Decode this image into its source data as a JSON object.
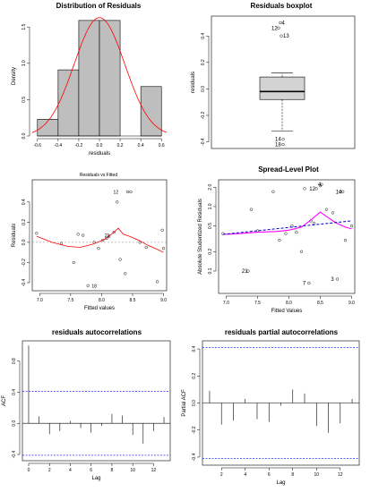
{
  "chart_data": [
    {
      "id": "hist",
      "type": "bar",
      "title": "Distribution of Residuals",
      "xlabel": "residuals",
      "ylabel": "Density",
      "xlim": [
        -0.65,
        0.65
      ],
      "ylim": [
        0,
        1.65
      ],
      "xticks": [
        -0.6,
        -0.4,
        -0.2,
        0.0,
        0.2,
        0.4,
        0.6
      ],
      "xtick_labels": [
        "-0.6",
        "-0.4",
        "-0.2",
        "0.0",
        "0.2",
        "0.4",
        "0.6"
      ],
      "yticks": [
        0,
        0.5,
        1.0,
        1.5
      ],
      "ytick_labels": [
        "0.0",
        "0.5",
        "1.0",
        "1.5"
      ],
      "bins": [
        {
          "x0": -0.6,
          "x1": -0.4,
          "density": 0.23
        },
        {
          "x0": -0.4,
          "x1": -0.2,
          "density": 0.91
        },
        {
          "x0": -0.2,
          "x1": 0.0,
          "density": 1.59
        },
        {
          "x0": 0.0,
          "x1": 0.2,
          "density": 1.59
        },
        {
          "x0": 0.2,
          "x1": 0.4,
          "density": 0.0
        },
        {
          "x0": 0.4,
          "x1": 0.6,
          "density": 0.68
        }
      ],
      "curve": {
        "mean": 0.0,
        "sd": 0.245,
        "color": "#ff0000"
      }
    },
    {
      "id": "box",
      "type": "box",
      "title": "Residuals boxplot",
      "ylabel": "residuals",
      "ylim": [
        -0.45,
        0.55
      ],
      "yticks": [
        -0.4,
        -0.2,
        0.0,
        0.2,
        0.4
      ],
      "ytick_labels": [
        "-0.4",
        "-0.2",
        "0.0",
        "0.2",
        "0.4"
      ],
      "q1": -0.08,
      "median": -0.02,
      "q3": 0.09,
      "whisker_low": -0.32,
      "whisker_high": 0.12,
      "outliers": [
        {
          "label": "4",
          "y": 0.5
        },
        {
          "label": "12",
          "y": 0.46
        },
        {
          "label": "13",
          "y": 0.4
        },
        {
          "label": "14",
          "y": -0.38
        },
        {
          "label": "18",
          "y": -0.42
        }
      ]
    },
    {
      "id": "rvf",
      "type": "scatter",
      "subtitle": "Residuals vs Fitted",
      "xlabel": "Fitted values",
      "ylabel": "Residuals",
      "xlim": [
        6.88,
        9.05
      ],
      "ylim": [
        -0.48,
        0.62
      ],
      "xticks": [
        7.0,
        7.5,
        8.0,
        8.5,
        9.0
      ],
      "xtick_labels": [
        "7.0",
        "7.5",
        "8.0",
        "8.5",
        "9.0"
      ],
      "yticks": [
        -0.4,
        -0.2,
        0.0,
        0.2,
        0.4
      ],
      "ytick_labels": [
        "-0.4",
        "-0.2",
        "0.0",
        "0.2",
        "0.4"
      ],
      "points": [
        {
          "x": 6.95,
          "y": 0.09
        },
        {
          "x": 7.35,
          "y": -0.01
        },
        {
          "x": 7.55,
          "y": -0.2
        },
        {
          "x": 7.62,
          "y": 0.08
        },
        {
          "x": 7.7,
          "y": 0.07
        },
        {
          "x": 7.78,
          "y": -0.43
        },
        {
          "x": 7.88,
          "y": 0.0
        },
        {
          "x": 7.95,
          "y": -0.06
        },
        {
          "x": 8.02,
          "y": 0.02
        },
        {
          "x": 8.08,
          "y": 0.04
        },
        {
          "x": 8.12,
          "y": 0.06
        },
        {
          "x": 8.2,
          "y": 0.1
        },
        {
          "x": 8.25,
          "y": 0.4
        },
        {
          "x": 8.3,
          "y": -0.17
        },
        {
          "x": 8.38,
          "y": -0.31
        },
        {
          "x": 8.42,
          "y": 0.5
        },
        {
          "x": 8.47,
          "y": 0.5
        },
        {
          "x": 8.62,
          "y": 0.0
        },
        {
          "x": 8.72,
          "y": -0.05
        },
        {
          "x": 8.9,
          "y": -0.39
        },
        {
          "x": 8.98,
          "y": 0.12
        },
        {
          "x": 9.0,
          "y": -0.06
        }
      ],
      "smooth": [
        {
          "x": 6.95,
          "y": 0.06
        },
        {
          "x": 7.2,
          "y": 0.0
        },
        {
          "x": 7.45,
          "y": -0.04
        },
        {
          "x": 7.65,
          "y": -0.05
        },
        {
          "x": 7.85,
          "y": -0.02
        },
        {
          "x": 8.05,
          "y": 0.03
        },
        {
          "x": 8.2,
          "y": 0.1
        },
        {
          "x": 8.27,
          "y": 0.14
        },
        {
          "x": 8.35,
          "y": 0.08
        },
        {
          "x": 8.45,
          "y": 0.06
        },
        {
          "x": 8.6,
          "y": 0.02
        },
        {
          "x": 8.75,
          "y": -0.03
        },
        {
          "x": 8.9,
          "y": -0.07
        },
        {
          "x": 9.0,
          "y": -0.1
        }
      ],
      "labels": [
        {
          "text": "12",
          "x": 8.19,
          "y": 0.5
        },
        {
          "text": "21",
          "x": 8.05,
          "y": 0.07
        },
        {
          "text": "18",
          "x": 7.84,
          "y": -0.43
        }
      ],
      "line_color": "#ff0000"
    },
    {
      "id": "slp",
      "type": "scatter",
      "title": "Spread-Level Plot",
      "xlabel": "Fitted Values",
      "ylabel": "Absolute Studentized Residuals",
      "log_y": true,
      "xlim": [
        6.88,
        9.05
      ],
      "ylim": [
        0.045,
        2.6
      ],
      "xticks": [
        7.0,
        7.5,
        8.0,
        8.5,
        9.0
      ],
      "xtick_labels": [
        "7.0",
        "7.5",
        "8.0",
        "8.5",
        "9.0"
      ],
      "yticks": [
        0.1,
        0.2,
        0.5,
        1.0,
        2.0
      ],
      "ytick_labels": [
        "0.1",
        "0.2",
        "0.5",
        "1.0",
        "2.0"
      ],
      "points": [
        {
          "x": 6.95,
          "y": 0.38
        },
        {
          "x": 7.4,
          "y": 0.9
        },
        {
          "x": 7.5,
          "y": 0.42
        },
        {
          "x": 7.75,
          "y": 1.7
        },
        {
          "x": 7.85,
          "y": 0.3
        },
        {
          "x": 7.95,
          "y": 0.38
        },
        {
          "x": 8.05,
          "y": 0.5
        },
        {
          "x": 8.12,
          "y": 0.4
        },
        {
          "x": 8.2,
          "y": 0.2
        },
        {
          "x": 8.25,
          "y": 1.9
        },
        {
          "x": 8.35,
          "y": 0.6
        },
        {
          "x": 8.4,
          "y": 0.55
        },
        {
          "x": 8.5,
          "y": 2.1
        },
        {
          "x": 8.6,
          "y": 0.9
        },
        {
          "x": 8.7,
          "y": 0.8
        },
        {
          "x": 8.82,
          "y": 1.7
        },
        {
          "x": 8.9,
          "y": 0.3
        },
        {
          "x": 9.0,
          "y": 0.5
        }
      ],
      "outlier_points": [
        {
          "label": "21",
          "x": 7.35,
          "y": 0.1
        },
        {
          "label": "7",
          "x": 8.32,
          "y": 0.065
        },
        {
          "label": "3",
          "x": 8.77,
          "y": 0.075
        },
        {
          "label": "12",
          "x": 8.44,
          "y": 1.9
        },
        {
          "label": "4",
          "x": 8.52,
          "y": 2.2
        },
        {
          "label": "14",
          "x": 8.86,
          "y": 1.7
        }
      ],
      "smooth": [
        {
          "x": 6.95,
          "y": 0.37
        },
        {
          "x": 7.2,
          "y": 0.38
        },
        {
          "x": 7.5,
          "y": 0.4
        },
        {
          "x": 7.8,
          "y": 0.41
        },
        {
          "x": 8.0,
          "y": 0.43
        },
        {
          "x": 8.2,
          "y": 0.48
        },
        {
          "x": 8.35,
          "y": 0.62
        },
        {
          "x": 8.5,
          "y": 0.82
        },
        {
          "x": 8.6,
          "y": 0.7
        },
        {
          "x": 8.75,
          "y": 0.56
        },
        {
          "x": 8.9,
          "y": 0.48
        },
        {
          "x": 9.0,
          "y": 0.45
        }
      ],
      "fit": [
        {
          "x": 6.95,
          "y": 0.37
        },
        {
          "x": 9.0,
          "y": 0.6
        }
      ],
      "smooth_color": "#ff00ff",
      "fit_color": "#0000cc"
    },
    {
      "id": "acf",
      "type": "bar",
      "title": "residuals autocorrelations",
      "xlabel": "Lag",
      "ylabel": "ACF",
      "xlim": [
        -0.6,
        13.6
      ],
      "ylim": [
        -0.48,
        1.06
      ],
      "xticks": [
        0,
        2,
        4,
        6,
        8,
        10,
        12
      ],
      "xtick_labels": [
        "0",
        "2",
        "4",
        "6",
        "8",
        "10",
        "12"
      ],
      "yticks": [
        -0.4,
        0.0,
        0.4,
        0.8
      ],
      "ytick_labels": [
        "-0.4",
        "0.0",
        "0.4",
        "0.8"
      ],
      "lags": [
        0,
        1,
        2,
        3,
        4,
        5,
        6,
        7,
        8,
        9,
        10,
        11,
        12,
        13
      ],
      "values": [
        1.0,
        0.09,
        -0.14,
        -0.1,
        0.03,
        -0.06,
        -0.12,
        -0.03,
        0.12,
        0.1,
        -0.15,
        -0.26,
        -0.1,
        0.08
      ],
      "conf": 0.41,
      "conf_color": "#0000ff"
    },
    {
      "id": "pacf",
      "type": "bar",
      "title": "residuals partial autocorrelations",
      "xlabel": "Lag",
      "ylabel": "Partial ACF",
      "xlim": [
        0.4,
        13.6
      ],
      "ylim": [
        -0.46,
        0.46
      ],
      "xticks": [
        2,
        4,
        6,
        8,
        10,
        12
      ],
      "xtick_labels": [
        "2",
        "4",
        "6",
        "8",
        "10",
        "12"
      ],
      "yticks": [
        -0.4,
        -0.2,
        0.0,
        0.2,
        0.4
      ],
      "ytick_labels": [
        "-0.4",
        "-0.2",
        "0.0",
        "0.2",
        "0.4"
      ],
      "lags": [
        1,
        2,
        3,
        4,
        5,
        6,
        7,
        8,
        9,
        10,
        11,
        12,
        13
      ],
      "values": [
        0.09,
        -0.16,
        -0.13,
        0.03,
        -0.12,
        -0.14,
        -0.02,
        0.1,
        0.07,
        -0.17,
        -0.22,
        -0.15,
        0.03
      ],
      "conf": 0.41,
      "conf_color": "#0000ff"
    }
  ]
}
